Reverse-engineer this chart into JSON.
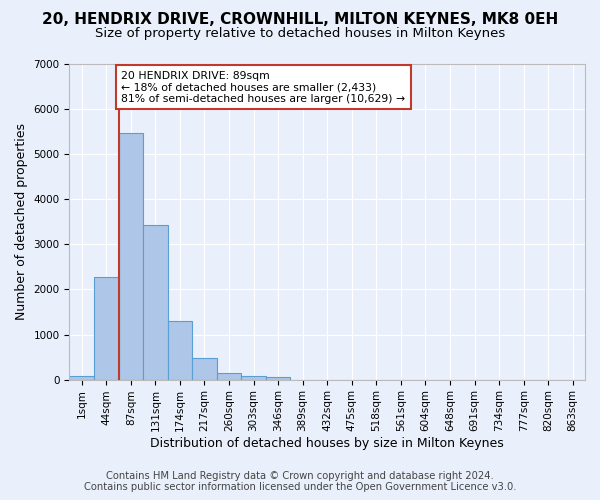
{
  "title": "20, HENDRIX DRIVE, CROWNHILL, MILTON KEYNES, MK8 0EH",
  "subtitle": "Size of property relative to detached houses in Milton Keynes",
  "xlabel": "Distribution of detached houses by size in Milton Keynes",
  "ylabel": "Number of detached properties",
  "footer_line1": "Contains HM Land Registry data © Crown copyright and database right 2024.",
  "footer_line2": "Contains public sector information licensed under the Open Government Licence v3.0.",
  "bar_values": [
    70,
    2270,
    5460,
    3440,
    1300,
    470,
    155,
    80,
    50,
    0,
    0,
    0,
    0,
    0,
    0,
    0,
    0,
    0,
    0,
    0,
    0
  ],
  "bar_labels": [
    "1sqm",
    "44sqm",
    "87sqm",
    "131sqm",
    "174sqm",
    "217sqm",
    "260sqm",
    "303sqm",
    "346sqm",
    "389sqm",
    "432sqm",
    "475sqm",
    "518sqm",
    "561sqm",
    "604sqm",
    "648sqm",
    "691sqm",
    "734sqm",
    "777sqm",
    "820sqm",
    "863sqm"
  ],
  "bar_color": "#aec6e8",
  "bar_edge_color": "#5a9fd4",
  "vline_x": 1.5,
  "vline_color": "#c0392b",
  "annotation_text": "20 HENDRIX DRIVE: 89sqm\n← 18% of detached houses are smaller (2,433)\n81% of semi-detached houses are larger (10,629) →",
  "annotation_box_color": "#ffffff",
  "annotation_box_edge_color": "#c0392b",
  "ylim": [
    0,
    7000
  ],
  "bg_color": "#eaf0fb",
  "grid_color": "#ffffff",
  "title_fontsize": 11,
  "subtitle_fontsize": 9.5,
  "axis_label_fontsize": 9,
  "tick_fontsize": 7.5,
  "footer_fontsize": 7.2
}
